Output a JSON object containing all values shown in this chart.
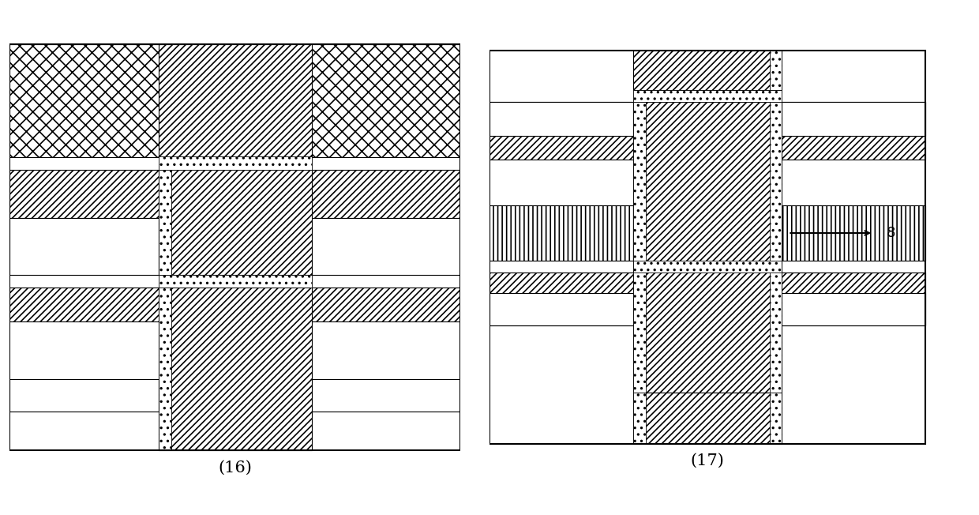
{
  "label16": "(16)",
  "label17": "(17)",
  "label8": "8"
}
